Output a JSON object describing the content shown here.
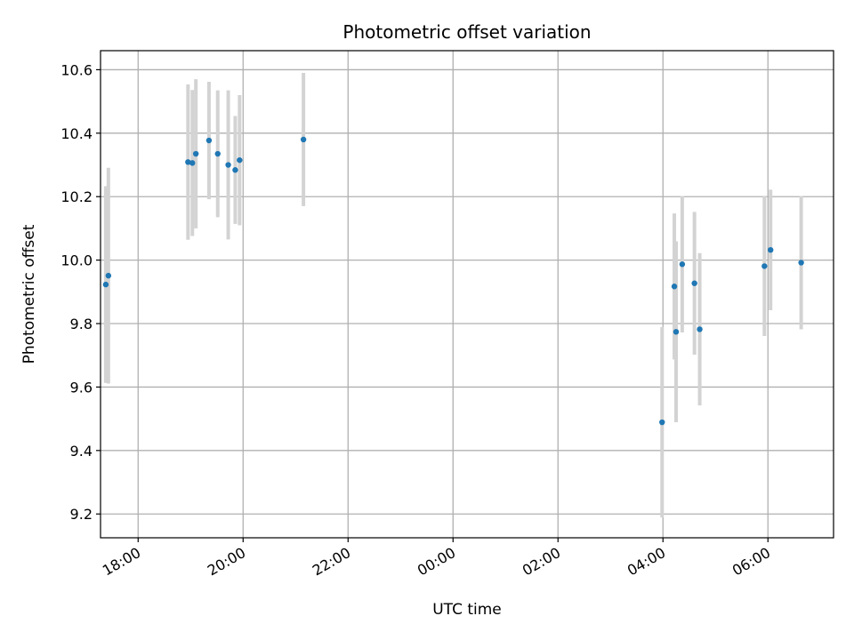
{
  "chart_data": {
    "type": "scatter",
    "title": "Photometric offset variation",
    "xlabel": "UTC time",
    "ylabel": "Photometric offset",
    "x_unit": "hours (UTC clock, continuing past midnight)",
    "xlim": [
      "17:17",
      "31:15"
    ],
    "ylim": [
      9.125,
      10.66
    ],
    "grid": true,
    "x_tick_labels": [
      "18:00",
      "20:00",
      "22:00",
      "00:00",
      "02:00",
      "04:00",
      "06:00"
    ],
    "y_tick_labels": [
      "9.2",
      "9.4",
      "9.6",
      "9.8",
      "10.0",
      "10.2",
      "10.4",
      "10.6"
    ],
    "colors": {
      "points": "#1f77b4",
      "error_bars": "#d3d3d3",
      "grid": "#b0b0b0"
    },
    "series": [
      {
        "points": [
          {
            "x": "17:23",
            "y": 9.923,
            "err": 0.31
          },
          {
            "x": "17:26",
            "y": 9.951,
            "err": 0.34
          },
          {
            "x": "18:57",
            "y": 10.309,
            "err": 0.245
          },
          {
            "x": "19:02",
            "y": 10.306,
            "err": 0.23
          },
          {
            "x": "19:06",
            "y": 10.335,
            "err": 0.235
          },
          {
            "x": "19:21",
            "y": 10.377,
            "err": 0.185
          },
          {
            "x": "19:31",
            "y": 10.335,
            "err": 0.2
          },
          {
            "x": "19:43",
            "y": 10.3,
            "err": 0.235
          },
          {
            "x": "19:51",
            "y": 10.284,
            "err": 0.17
          },
          {
            "x": "19:56",
            "y": 10.315,
            "err": 0.205
          },
          {
            "x": "21:09",
            "y": 10.38,
            "err": 0.21
          },
          {
            "x": "03:59",
            "y": 9.489,
            "err": 0.3
          },
          {
            "x": "04:13",
            "y": 9.917,
            "err": 0.23
          },
          {
            "x": "04:15",
            "y": 9.774,
            "err": 0.285
          },
          {
            "x": "04:22",
            "y": 9.987,
            "err": 0.215
          },
          {
            "x": "04:36",
            "y": 9.927,
            "err": 0.225
          },
          {
            "x": "04:42",
            "y": 9.782,
            "err": 0.24
          },
          {
            "x": "05:56",
            "y": 9.981,
            "err": 0.22
          },
          {
            "x": "06:03",
            "y": 10.032,
            "err": 0.19
          },
          {
            "x": "06:38",
            "y": 9.992,
            "err": 0.21
          }
        ]
      }
    ]
  }
}
